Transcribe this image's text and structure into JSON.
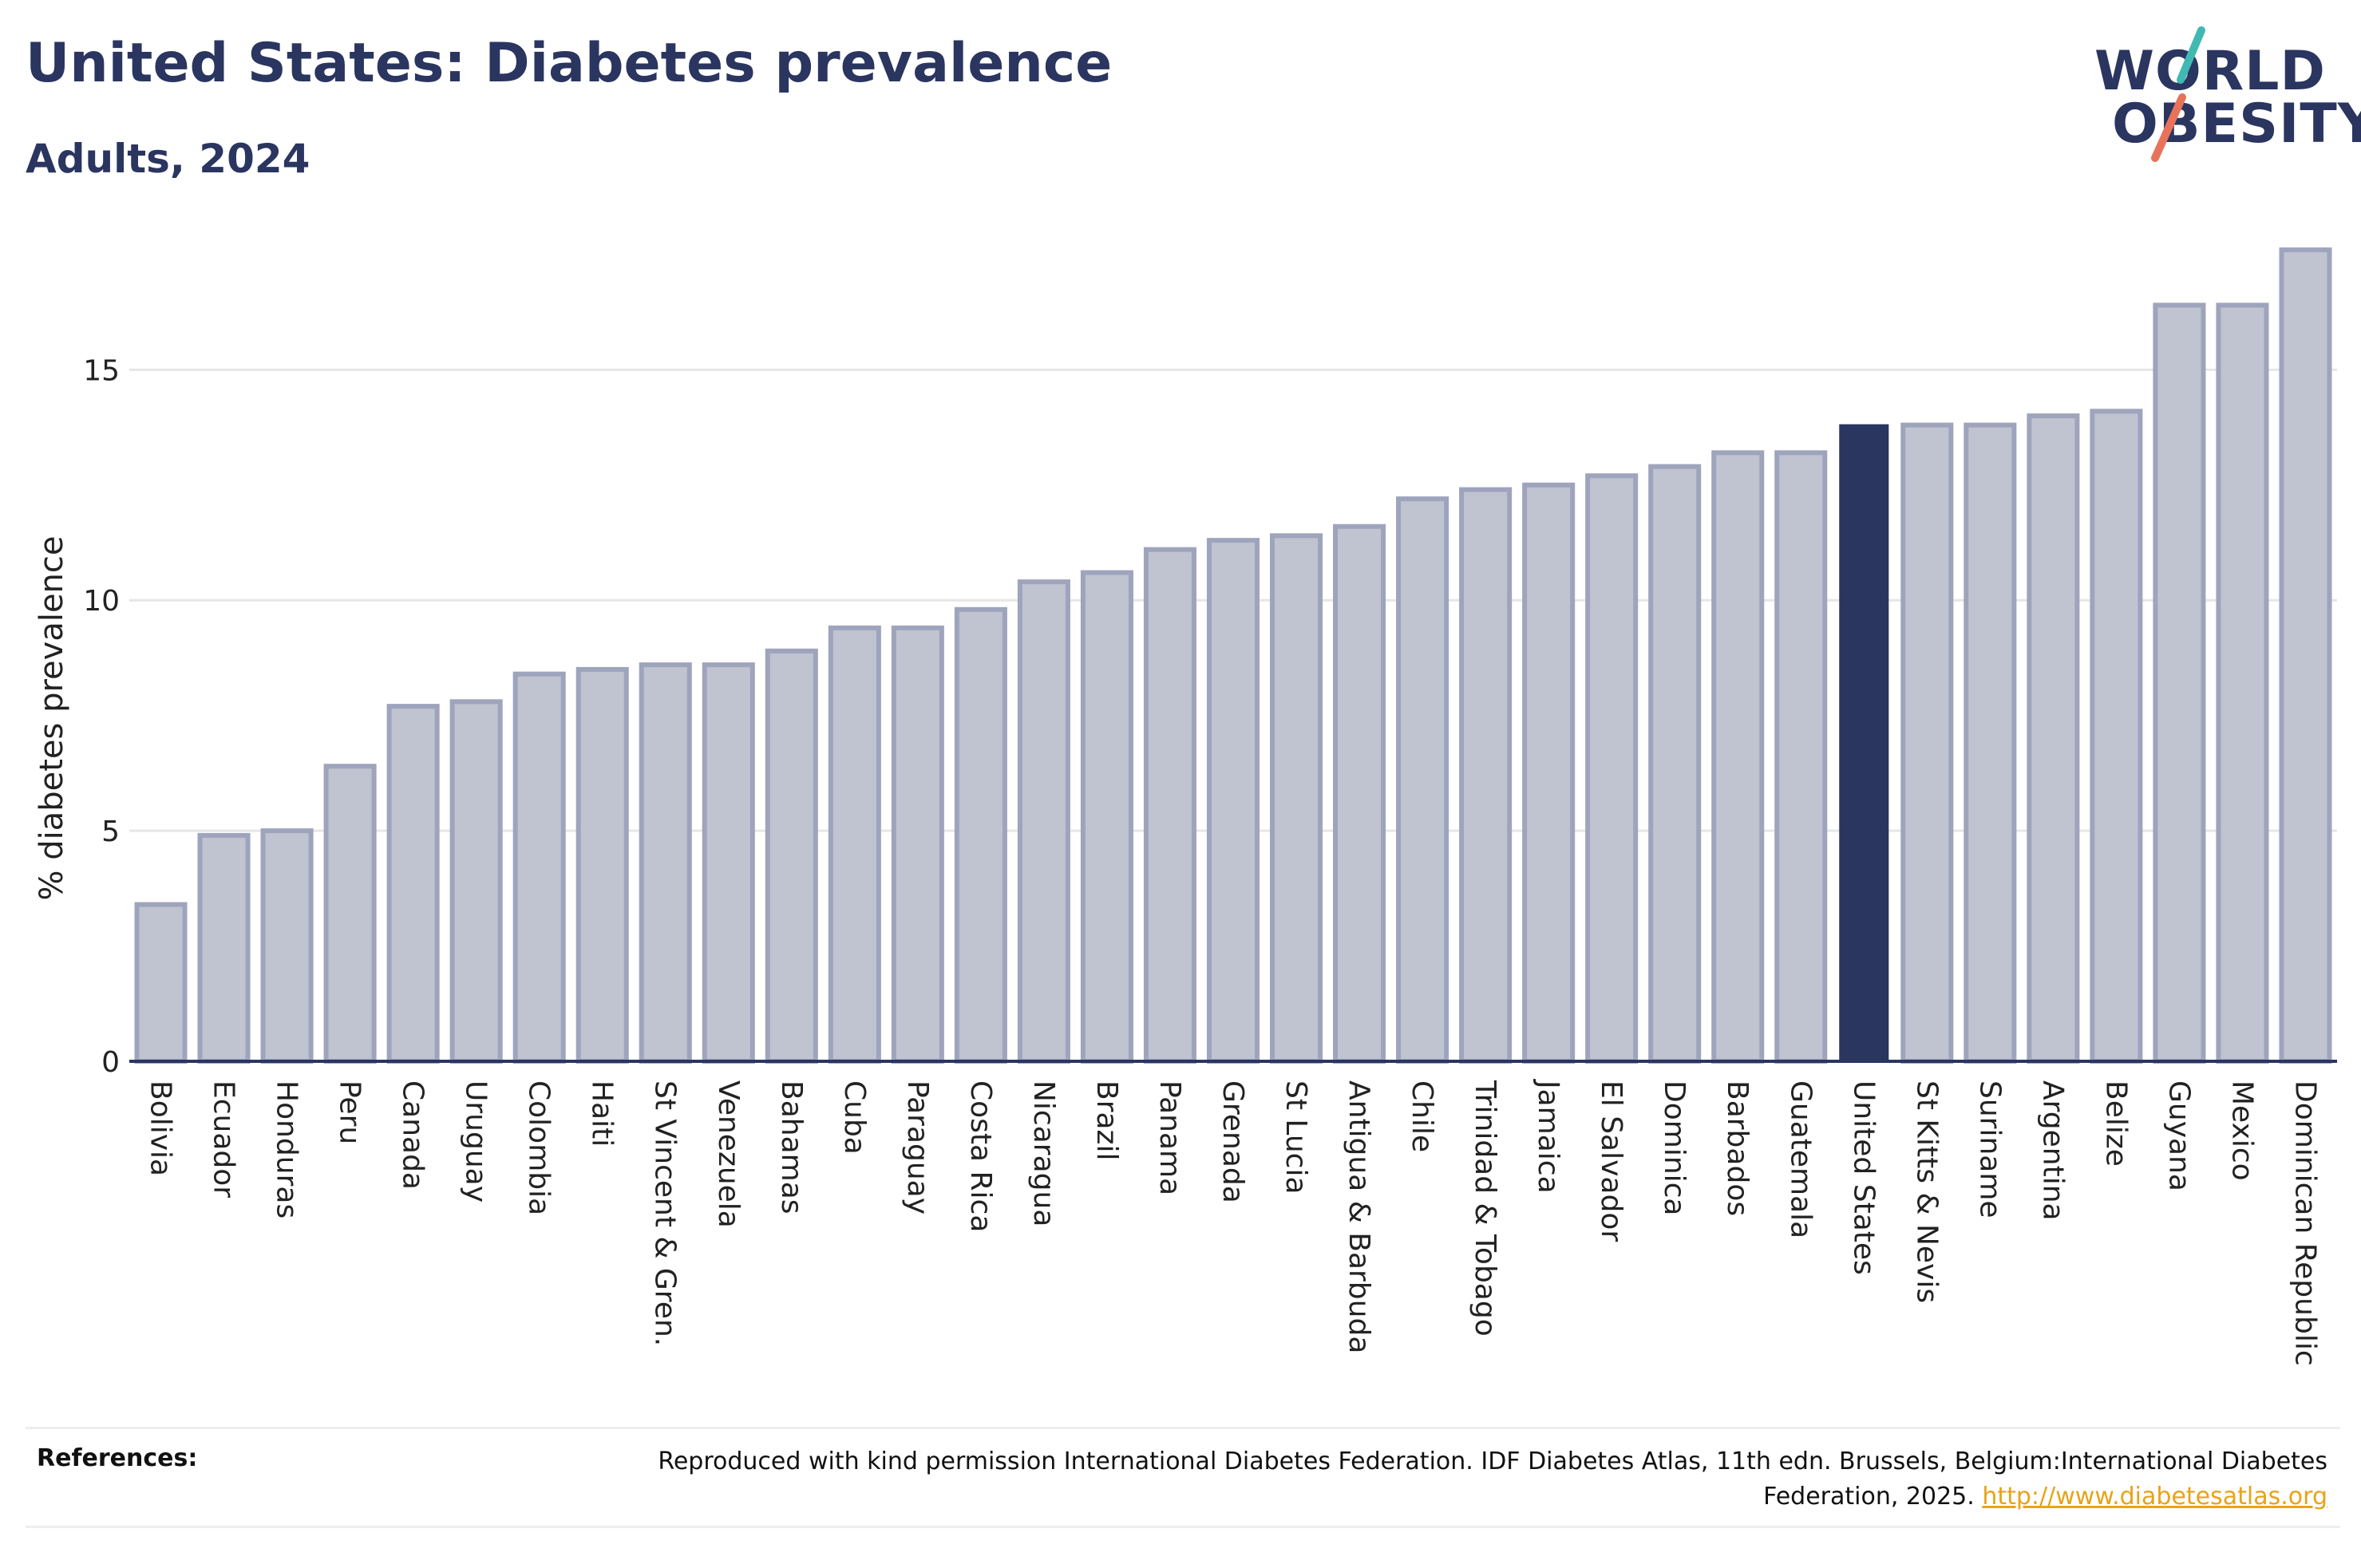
{
  "header": {
    "title": "United States: Diabetes prevalence",
    "subtitle": "Adults, 2024"
  },
  "logo": {
    "line1": "WORLD",
    "line2": "OBESITY",
    "colors": {
      "navy": "#2a3560",
      "teal": "#3fb9b1",
      "coral": "#e8735a"
    }
  },
  "colors": {
    "bar": "#c0c3d0",
    "bar_outline": "#9fa4bd",
    "highlight": "#2a3560",
    "grid": "#e6e6e6",
    "axis": "#2a3560"
  },
  "chart_data": {
    "type": "bar",
    "title": "United States: Diabetes prevalence",
    "subtitle": "Adults, 2024",
    "ylabel": "% diabetes prevalence",
    "xlabel": "",
    "ylim": [
      0,
      18
    ],
    "yticks": [
      0,
      5,
      10,
      15
    ],
    "grid": true,
    "highlight": "United States",
    "categories": [
      "Bolivia",
      "Ecuador",
      "Honduras",
      "Peru",
      "Canada",
      "Uruguay",
      "Colombia",
      "Haiti",
      "St Vincent & Gren.",
      "Venezuela",
      "Bahamas",
      "Cuba",
      "Paraguay",
      "Costa Rica",
      "Nicaragua",
      "Brazil",
      "Panama",
      "Grenada",
      "St Lucia",
      "Antigua & Barbuda",
      "Chile",
      "Trinidad & Tobago",
      "Jamaica",
      "El Salvador",
      "Dominica",
      "Barbados",
      "Guatemala",
      "United States",
      "St Kitts & Nevis",
      "Suriname",
      "Argentina",
      "Belize",
      "Guyana",
      "Mexico",
      "Dominican Republic"
    ],
    "values": [
      3.4,
      4.9,
      5.0,
      6.4,
      7.7,
      7.8,
      8.4,
      8.5,
      8.6,
      8.6,
      8.9,
      9.4,
      9.4,
      9.8,
      10.4,
      10.6,
      11.1,
      11.3,
      11.4,
      11.6,
      12.2,
      12.4,
      12.5,
      12.7,
      12.9,
      13.2,
      13.2,
      13.8,
      13.8,
      13.8,
      14.0,
      14.1,
      16.4,
      16.4,
      17.6
    ]
  },
  "references": {
    "label": "References:",
    "text": "Reproduced with kind permission International Diabetes Federation. IDF Diabetes Atlas, 11th edn. Brussels, Belgium:International Diabetes Federation, 2025. ",
    "link": "http://www.diabetesatlas.org"
  }
}
